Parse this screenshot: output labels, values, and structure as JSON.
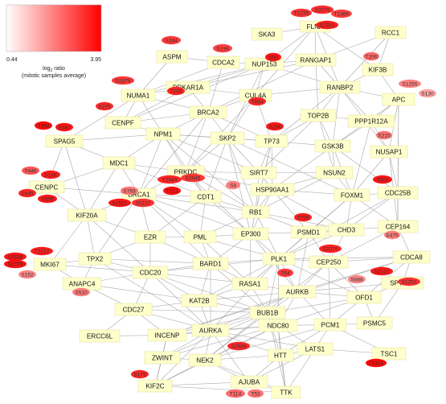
{
  "legend": {
    "min_label": "0.44",
    "max_label": "3.95",
    "ratio_title_pre": "log",
    "ratio_title_sub": "2",
    "ratio_title_post": " ratio",
    "caption": "(mitotic samples average)",
    "color_low": "#ffffff",
    "color_high": "#ff0000"
  },
  "proteins": [
    "FLNA",
    "RCC1",
    "SKA3",
    "RANGAP1",
    "ASPM",
    "CDCA2",
    "NUP153",
    "KIF3B",
    "NUMA1",
    "PRKAR1A",
    "CUL4A",
    "RANBP2",
    "APC",
    "CENPF",
    "BRCA2",
    "PPP1R12A",
    "TOP2B",
    "SPAG5",
    "NPM1",
    "SKP2",
    "TP73",
    "GSK3B",
    "NUSAP1",
    "MDC1",
    "PRKDC",
    "SIRT7",
    "NSUN2",
    "CENPC",
    "BRCA1",
    "CDT1",
    "HSP90AA1",
    "FOXM1",
    "CDC25B",
    "KIF20A",
    "RB1",
    "CHD3",
    "CEP164",
    "EZR",
    "PML",
    "EP300",
    "PSMD1",
    "TPX2",
    "BARD1",
    "PLK1",
    "CEP250",
    "CDCA8",
    "MKI67",
    "CDC20",
    "ANAPC4",
    "RASA1",
    "AURKB",
    "SPTBN1",
    "OFD1",
    "KAT2B",
    "BUB1B",
    "CDC27",
    "PSMC5",
    "ERCC6L",
    "INCENP",
    "AURKA",
    "NDC80",
    "PCM1",
    "ZWINT",
    "NEK2",
    "HTT",
    "LATS1",
    "TSC1",
    "KIF2C",
    "AJUBA",
    "TTK"
  ],
  "sites": [
    {
      "label": "T1275",
      "ratio": 0.74
    },
    {
      "label": "S2075",
      "ratio": 0.76
    },
    {
      "label": "T1369",
      "ratio": 0.66
    },
    {
      "label": "S2321",
      "ratio": 0.85
    },
    {
      "label": "S244",
      "ratio": 0.7
    },
    {
      "label": "S198",
      "ratio": 0.66
    },
    {
      "label": "S50",
      "ratio": 0.9
    },
    {
      "label": "T206",
      "ratio": 0.45
    },
    {
      "label": "S1255",
      "ratio": 0.32
    },
    {
      "label": "S130",
      "ratio": 0.15
    },
    {
      "label": "S1879",
      "ratio": 0.72
    },
    {
      "label": "T106",
      "ratio": 0.82
    },
    {
      "label": "T684",
      "ratio": 0.8
    },
    {
      "label": "S275",
      "ratio": 0.78
    },
    {
      "label": "S284",
      "ratio": 0.88
    },
    {
      "label": "T398",
      "ratio": 0.95
    },
    {
      "label": "S387",
      "ratio": 0.9
    },
    {
      "label": "S215",
      "ratio": 0.4
    },
    {
      "label": "T2944",
      "ratio": 0.8
    },
    {
      "label": "S2945",
      "ratio": 0.72
    },
    {
      "label": "T446",
      "ratio": 0.55
    },
    {
      "label": "S168",
      "ratio": 0.85
    },
    {
      "label": "S545",
      "ratio": 0.8
    },
    {
      "label": "S556",
      "ratio": 0.88
    },
    {
      "label": "S793",
      "ratio": 0.4
    },
    {
      "label": "S8",
      "ratio": 0.35
    },
    {
      "label": "T213",
      "ratio": 0.92
    },
    {
      "label": "S1551",
      "ratio": 0.88
    },
    {
      "label": "S1127",
      "ratio": 0.75
    },
    {
      "label": "T303",
      "ratio": 0.9
    },
    {
      "label": "T799",
      "ratio": 0.85
    },
    {
      "label": "S475",
      "ratio": 0.35
    },
    {
      "label": "S2538",
      "ratio": 0.9
    },
    {
      "label": "T2212",
      "ratio": 0.85
    },
    {
      "label": "S2779",
      "ratio": 0.92
    },
    {
      "label": "S152",
      "ratio": 0.3
    },
    {
      "label": "S2076",
      "ratio": 0.82
    },
    {
      "label": "T64",
      "ratio": 0.72
    },
    {
      "label": "S2122",
      "ratio": 0.88
    },
    {
      "label": "S688",
      "ratio": 0.3
    },
    {
      "label": "S1252",
      "ratio": 0.75
    },
    {
      "label": "S510",
      "ratio": 0.35
    },
    {
      "label": "S2939",
      "ratio": 0.8
    },
    {
      "label": "T1401",
      "ratio": 0.95
    },
    {
      "label": "S179",
      "ratio": 0.8
    },
    {
      "label": "T114",
      "ratio": 0.45
    },
    {
      "label": "T53",
      "ratio": 0.4
    }
  ],
  "edges": [
    [
      "FLNA",
      "RANGAP1"
    ],
    [
      "FLNA",
      "NUP153"
    ],
    [
      "FLNA",
      "RANBP2"
    ],
    [
      "FLNA",
      "KIF3B"
    ],
    [
      "FLNA",
      "CUL4A"
    ],
    [
      "FLNA",
      "SKA3"
    ],
    [
      "RCC1",
      "RANBP2"
    ],
    [
      "RCC1",
      "RANGAP1"
    ],
    [
      "RCC1",
      "KIF3B"
    ],
    [
      "RANGAP1",
      "NUP153"
    ],
    [
      "RANGAP1",
      "RANBP2"
    ],
    [
      "RANGAP1",
      "TOP2B"
    ],
    [
      "RANGAP1",
      "PRKAR1A"
    ],
    [
      "RANGAP1",
      "BRCA2"
    ],
    [
      "NUP153",
      "PRKAR1A"
    ],
    [
      "NUP153",
      "CDCA2"
    ],
    [
      "NUP153",
      "RANBP2"
    ],
    [
      "NUP153",
      "CUL4A"
    ],
    [
      "NUP153",
      "NUMA1"
    ],
    [
      "NUP153",
      "SKP2"
    ],
    [
      "NUP153",
      "CENPF"
    ],
    [
      "ASPM",
      "NUMA1"
    ],
    [
      "ASPM",
      "CDCA2"
    ],
    [
      "CDCA2",
      "NUMA1"
    ],
    [
      "CDCA2",
      "BRCA2"
    ],
    [
      "KIF3B",
      "RANBP2"
    ],
    [
      "KIF3B",
      "APC"
    ],
    [
      "NUMA1",
      "CENPF"
    ],
    [
      "NUMA1",
      "BRCA2"
    ],
    [
      "NUMA1",
      "NPM1"
    ],
    [
      "NUMA1",
      "SPAG5"
    ],
    [
      "NUMA1",
      "PRKAR1A"
    ],
    [
      "PRKAR1A",
      "BRCA2"
    ],
    [
      "PRKAR1A",
      "CUL4A"
    ],
    [
      "PRKAR1A",
      "CENPF"
    ],
    [
      "CUL4A",
      "SKP2"
    ],
    [
      "CUL4A",
      "TP73"
    ],
    [
      "CUL4A",
      "BRCA2"
    ],
    [
      "CUL4A",
      "RANBP2"
    ],
    [
      "CUL4A",
      "PRKDC"
    ],
    [
      "RANBP2",
      "TOP2B"
    ],
    [
      "RANBP2",
      "PPP1R12A"
    ],
    [
      "RANBP2",
      "APC"
    ],
    [
      "RANBP2",
      "TP73"
    ],
    [
      "RANBP2",
      "GSK3B"
    ],
    [
      "RANBP2",
      "NUSAP1"
    ],
    [
      "APC",
      "PPP1R12A"
    ],
    [
      "APC",
      "GSK3B"
    ],
    [
      "APC",
      "NUSAP1"
    ],
    [
      "APC",
      "CDC25B"
    ],
    [
      "APC",
      "CEP164"
    ],
    [
      "CENPF",
      "NPM1"
    ],
    [
      "CENPF",
      "BRCA2"
    ],
    [
      "BRCA2",
      "SKP2"
    ],
    [
      "BRCA2",
      "NPM1"
    ],
    [
      "BRCA2",
      "BRCA1"
    ],
    [
      "BRCA2",
      "TP73"
    ],
    [
      "BRCA2",
      "PRKDC"
    ],
    [
      "PPP1R12A",
      "GSK3B"
    ],
    [
      "PPP1R12A",
      "TOP2B"
    ],
    [
      "PPP1R12A",
      "FOXM1"
    ],
    [
      "PPP1R12A",
      "NUSAP1"
    ],
    [
      "TOP2B",
      "GSK3B"
    ],
    [
      "TOP2B",
      "NSUN2"
    ],
    [
      "TOP2B",
      "TP73"
    ],
    [
      "TOP2B",
      "SIRT7"
    ],
    [
      "SPAG5",
      "NPM1"
    ],
    [
      "SPAG5",
      "MDC1"
    ],
    [
      "SPAG5",
      "CENPC"
    ],
    [
      "SPAG5",
      "KIF20A"
    ],
    [
      "NPM1",
      "SKP2"
    ],
    [
      "NPM1",
      "MDC1"
    ],
    [
      "NPM1",
      "PRKDC"
    ],
    [
      "NPM1",
      "BRCA1"
    ],
    [
      "NPM1",
      "CDT1"
    ],
    [
      "NPM1",
      "TP73"
    ],
    [
      "NPM1",
      "SIRT7"
    ],
    [
      "NPM1",
      "RB1"
    ],
    [
      "SKP2",
      "TP73"
    ],
    [
      "SKP2",
      "PRKDC"
    ],
    [
      "SKP2",
      "CDT1"
    ],
    [
      "SKP2",
      "SIRT7"
    ],
    [
      "SKP2",
      "RB1"
    ],
    [
      "SKP2",
      "EP300"
    ],
    [
      "SKP2",
      "FOXM1"
    ],
    [
      "TP73",
      "SIRT7"
    ],
    [
      "TP73",
      "HSP90AA1"
    ],
    [
      "TP73",
      "EP300"
    ],
    [
      "TP73",
      "GSK3B"
    ],
    [
      "TP73",
      "RB1"
    ],
    [
      "GSK3B",
      "NSUN2"
    ],
    [
      "GSK3B",
      "FOXM1"
    ],
    [
      "GSK3B",
      "HSP90AA1"
    ],
    [
      "GSK3B",
      "CDC25B"
    ],
    [
      "NUSAP1",
      "FOXM1"
    ],
    [
      "NUSAP1",
      "CDC25B"
    ],
    [
      "NUSAP1",
      "CEP164"
    ],
    [
      "MDC1",
      "PRKDC"
    ],
    [
      "MDC1",
      "BRCA1"
    ],
    [
      "MDC1",
      "CENPC"
    ],
    [
      "MDC1",
      "KIF20A"
    ],
    [
      "MDC1",
      "CDT1"
    ],
    [
      "PRKDC",
      "SIRT7"
    ],
    [
      "PRKDC",
      "BRCA1"
    ],
    [
      "PRKDC",
      "CDT1"
    ],
    [
      "PRKDC",
      "HSP90AA1"
    ],
    [
      "PRKDC",
      "EP300"
    ],
    [
      "PRKDC",
      "RB1"
    ],
    [
      "SIRT7",
      "HSP90AA1"
    ],
    [
      "SIRT7",
      "RB1"
    ],
    [
      "SIRT7",
      "NSUN2"
    ],
    [
      "NSUN2",
      "HSP90AA1"
    ],
    [
      "NSUN2",
      "FOXM1"
    ],
    [
      "NSUN2",
      "RB1"
    ],
    [
      "CENPC",
      "KIF20A"
    ],
    [
      "CENPC",
      "BRCA1"
    ],
    [
      "BRCA1",
      "CDT1"
    ],
    [
      "BRCA1",
      "KIF20A"
    ],
    [
      "BRCA1",
      "EZR"
    ],
    [
      "BRCA1",
      "BARD1"
    ],
    [
      "BRCA1",
      "PML"
    ],
    [
      "BRCA1",
      "TPX2"
    ],
    [
      "BRCA1",
      "RB1"
    ],
    [
      "BRCA1",
      "EP300"
    ],
    [
      "CDT1",
      "RB1"
    ],
    [
      "CDT1",
      "PML"
    ],
    [
      "CDT1",
      "EP300"
    ],
    [
      "CDT1",
      "EZR"
    ],
    [
      "HSP90AA1",
      "RB1"
    ],
    [
      "HSP90AA1",
      "FOXM1"
    ],
    [
      "HSP90AA1",
      "EP300"
    ],
    [
      "HSP90AA1",
      "PSMD1"
    ],
    [
      "HSP90AA1",
      "CHD3"
    ],
    [
      "FOXM1",
      "CDC25B"
    ],
    [
      "FOXM1",
      "CHD3"
    ],
    [
      "FOXM1",
      "CEP164"
    ],
    [
      "FOXM1",
      "PSMD1"
    ],
    [
      "FOXM1",
      "PLK1"
    ],
    [
      "CDC25B",
      "CEP164"
    ],
    [
      "CDC25B",
      "CHD3"
    ],
    [
      "CDC25B",
      "PLK1"
    ],
    [
      "KIF20A",
      "TPX2"
    ],
    [
      "KIF20A",
      "EZR"
    ],
    [
      "KIF20A",
      "MKI67"
    ],
    [
      "KIF20A",
      "CDC20"
    ],
    [
      "RB1",
      "EP300"
    ],
    [
      "RB1",
      "PML"
    ],
    [
      "RB1",
      "PSMD1"
    ],
    [
      "RB1",
      "CHD3"
    ],
    [
      "RB1",
      "PLK1"
    ],
    [
      "CHD3",
      "PSMD1"
    ],
    [
      "CHD3",
      "CEP164"
    ],
    [
      "CHD3",
      "CEP250"
    ],
    [
      "CHD3",
      "PLK1"
    ],
    [
      "CEP164",
      "CDCA8"
    ],
    [
      "CEP164",
      "CEP250"
    ],
    [
      "EZR",
      "PML"
    ],
    [
      "EZR",
      "BARD1"
    ],
    [
      "EZR",
      "TPX2"
    ],
    [
      "EZR",
      "CDC20"
    ],
    [
      "PML",
      "EP300"
    ],
    [
      "PML",
      "BARD1"
    ],
    [
      "PML",
      "PLK1"
    ],
    [
      "PML",
      "RASA1"
    ],
    [
      "EP300",
      "PSMD1"
    ],
    [
      "EP300",
      "PLK1"
    ],
    [
      "EP300",
      "BARD1"
    ],
    [
      "EP300",
      "RASA1"
    ],
    [
      "EP300",
      "AURKB"
    ],
    [
      "PSMD1",
      "PLK1"
    ],
    [
      "PSMD1",
      "CEP250"
    ],
    [
      "PSMD1",
      "AURKB"
    ],
    [
      "TPX2",
      "CDC20"
    ],
    [
      "TPX2",
      "MKI67"
    ],
    [
      "TPX2",
      "AURKA"
    ],
    [
      "TPX2",
      "BARD1"
    ],
    [
      "TPX2",
      "ANAPC4"
    ],
    [
      "BARD1",
      "PLK1"
    ],
    [
      "BARD1",
      "CDC20"
    ],
    [
      "BARD1",
      "RASA1"
    ],
    [
      "BARD1",
      "KAT2B"
    ],
    [
      "BARD1",
      "AURKA"
    ],
    [
      "BARD1",
      "BUB1B"
    ],
    [
      "PLK1",
      "CEP250"
    ],
    [
      "PLK1",
      "AURKB"
    ],
    [
      "PLK1",
      "RASA1"
    ],
    [
      "PLK1",
      "BUB1B"
    ],
    [
      "PLK1",
      "CDCA8"
    ],
    [
      "PLK1",
      "AURKA"
    ],
    [
      "PLK1",
      "OFD1"
    ],
    [
      "PLK1",
      "KAT2B"
    ],
    [
      "PLK1",
      "NDC80"
    ],
    [
      "PLK1",
      "CDC20"
    ],
    [
      "CEP250",
      "CDCA8"
    ],
    [
      "CEP250",
      "AURKB"
    ],
    [
      "CEP250",
      "OFD1"
    ],
    [
      "CEP250",
      "NEK2"
    ],
    [
      "CEP250",
      "PCM1"
    ],
    [
      "CDCA8",
      "AURKB"
    ],
    [
      "CDCA8",
      "SPTBN1"
    ],
    [
      "CDCA8",
      "OFD1"
    ],
    [
      "CDCA8",
      "INCENP"
    ],
    [
      "MKI67",
      "CDC20"
    ],
    [
      "MKI67",
      "ANAPC4"
    ],
    [
      "CDC20",
      "ANAPC4"
    ],
    [
      "CDC20",
      "CDC27"
    ],
    [
      "CDC20",
      "KAT2B"
    ],
    [
      "CDC20",
      "BUB1B"
    ],
    [
      "CDC20",
      "AURKA"
    ],
    [
      "CDC20",
      "RASA1"
    ],
    [
      "ANAPC4",
      "CDC27"
    ],
    [
      "ANAPC4",
      "KAT2B"
    ],
    [
      "RASA1",
      "AURKB"
    ],
    [
      "RASA1",
      "KAT2B"
    ],
    [
      "RASA1",
      "BUB1B"
    ],
    [
      "AURKB",
      "BUB1B"
    ],
    [
      "AURKB",
      "OFD1"
    ],
    [
      "AURKB",
      "INCENP"
    ],
    [
      "AURKB",
      "AURKA"
    ],
    [
      "AURKB",
      "NDC80"
    ],
    [
      "AURKB",
      "SPTBN1"
    ],
    [
      "AURKB",
      "PCM1"
    ],
    [
      "AURKB",
      "KAT2B"
    ],
    [
      "SPTBN1",
      "OFD1"
    ],
    [
      "SPTBN1",
      "PSMC5"
    ],
    [
      "OFD1",
      "PCM1"
    ],
    [
      "OFD1",
      "PSMC5"
    ],
    [
      "OFD1",
      "NDC80"
    ],
    [
      "OFD1",
      "BUB1B"
    ],
    [
      "KAT2B",
      "BUB1B"
    ],
    [
      "KAT2B",
      "CDC27"
    ],
    [
      "KAT2B",
      "AURKA"
    ],
    [
      "BUB1B",
      "CDC27"
    ],
    [
      "BUB1B",
      "INCENP"
    ],
    [
      "BUB1B",
      "AURKA"
    ],
    [
      "BUB1B",
      "NDC80"
    ],
    [
      "BUB1B",
      "ZWINT"
    ],
    [
      "BUB1B",
      "TTK"
    ],
    [
      "BUB1B",
      "NEK2"
    ],
    [
      "BUB1B",
      "HTT"
    ],
    [
      "CDC27",
      "ERCC6L"
    ],
    [
      "CDC27",
      "INCENP"
    ],
    [
      "CDC27",
      "AURKA"
    ],
    [
      "PSMC5",
      "PCM1"
    ],
    [
      "ERCC6L",
      "INCENP"
    ],
    [
      "INCENP",
      "AURKA"
    ],
    [
      "INCENP",
      "ZWINT"
    ],
    [
      "INCENP",
      "NDC80"
    ],
    [
      "INCENP",
      "KIF2C"
    ],
    [
      "AURKA",
      "NDC80"
    ],
    [
      "AURKA",
      "ZWINT"
    ],
    [
      "AURKA",
      "NEK2"
    ],
    [
      "AURKA",
      "KIF2C"
    ],
    [
      "AURKA",
      "AJUBA"
    ],
    [
      "AURKA",
      "LATS1"
    ],
    [
      "AURKA",
      "HTT"
    ],
    [
      "NDC80",
      "PCM1"
    ],
    [
      "NDC80",
      "HTT"
    ],
    [
      "NDC80",
      "NEK2"
    ],
    [
      "NDC80",
      "TTK"
    ],
    [
      "NDC80",
      "ZWINT"
    ],
    [
      "NDC80",
      "KIF2C"
    ],
    [
      "NDC80",
      "LATS1"
    ],
    [
      "PCM1",
      "LATS1"
    ],
    [
      "PCM1",
      "HTT"
    ],
    [
      "PCM1",
      "TSC1"
    ],
    [
      "PCM1",
      "NEK2"
    ],
    [
      "ZWINT",
      "KIF2C"
    ],
    [
      "ZWINT",
      "NEK2"
    ],
    [
      "NEK2",
      "KIF2C"
    ],
    [
      "NEK2",
      "HTT"
    ],
    [
      "NEK2",
      "AJUBA"
    ],
    [
      "NEK2",
      "TTK"
    ],
    [
      "HTT",
      "LATS1"
    ],
    [
      "HTT",
      "TTK"
    ],
    [
      "HTT",
      "AJUBA"
    ],
    [
      "LATS1",
      "AJUBA"
    ],
    [
      "LATS1",
      "TTK"
    ],
    [
      "LATS1",
      "TSC1"
    ],
    [
      "KIF2C",
      "AJUBA"
    ],
    [
      "KIF2C",
      "TTK"
    ],
    [
      "AJUBA",
      "TTK"
    ]
  ]
}
